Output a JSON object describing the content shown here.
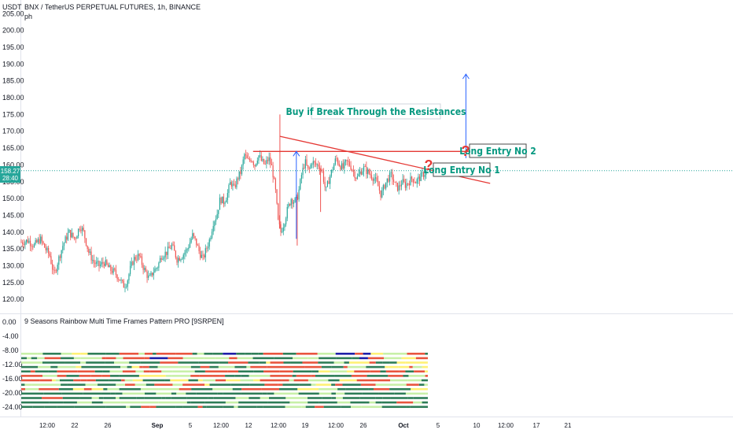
{
  "header": {
    "title": "BNX / TetherUS PERPETUAL FUTURES, 1h, BINANCE",
    "subtitle": "ph",
    "currency": "USDT"
  },
  "price_badge": {
    "price": "158.27",
    "countdown": "28:40"
  },
  "indicator": {
    "title": "9 Seasons Rainbow Multi Time Frames Pattern PRO [9SRPEN]"
  },
  "annotations": {
    "buy_text": "Buy if Break Through the Resistances",
    "entry1": "Long Entry No 1",
    "entry2": "Long Entry No 2",
    "question_mark": "?"
  },
  "colors": {
    "up_candle": "#26a69a",
    "down_candle": "#ef5350",
    "resistance_line": "#e53935",
    "arrow": "#2962ff",
    "annotation_text": "#089981",
    "question_mark": "#e53935",
    "price_line": "#26a69a",
    "rainbow_dark_green": "#2e7d57",
    "rainbow_light_green": "#c8f0a8",
    "rainbow_red": "#e8553e",
    "rainbow_yellow": "#fff176",
    "rainbow_blue": "#1e1ea8"
  },
  "chart_data": {
    "type": "candlestick",
    "title": "BNX / TetherUS PERPETUAL FUTURES, 1h, BINANCE",
    "price_axis": {
      "ticks": [
        "205.00",
        "200.00",
        "195.00",
        "190.00",
        "185.00",
        "180.00",
        "175.00",
        "170.00",
        "165.00",
        "160.00",
        "155.00",
        "150.00",
        "145.00",
        "140.00",
        "135.00",
        "130.00",
        "125.00",
        "120.00"
      ],
      "ylim": [
        117,
        206
      ],
      "current_price": 158.27
    },
    "indicator_axis": {
      "ticks": [
        "0.00",
        "-4.00",
        "-8.00",
        "-12.00",
        "-16.00",
        "-20.00",
        "-24.00"
      ],
      "ylim": [
        -26.5,
        1.5
      ]
    },
    "time_axis": {
      "ticks": [
        "12:00",
        "22",
        "26",
        "Sep",
        "5",
        "12:00",
        "12",
        "12:00",
        "19",
        "12:00",
        "26",
        "Oct",
        "5",
        "10",
        "12:00",
        "17",
        "21"
      ],
      "bold_ticks": [
        "Sep",
        "Oct"
      ]
    },
    "price_path": [
      [
        0,
        137
      ],
      [
        8,
        137.5
      ],
      [
        15,
        136
      ],
      [
        22,
        138
      ],
      [
        28,
        135
      ],
      [
        33,
        133
      ],
      [
        38,
        127
      ],
      [
        42,
        131
      ],
      [
        48,
        136
      ],
      [
        55,
        140
      ],
      [
        62,
        138
      ],
      [
        68,
        142
      ],
      [
        72,
        140
      ],
      [
        78,
        134
      ],
      [
        84,
        131
      ],
      [
        90,
        130
      ],
      [
        96,
        131
      ],
      [
        102,
        129
      ],
      [
        108,
        128
      ],
      [
        114,
        126
      ],
      [
        118,
        124
      ],
      [
        122,
        125
      ],
      [
        126,
        129
      ],
      [
        130,
        132
      ],
      [
        136,
        133
      ],
      [
        142,
        129
      ],
      [
        148,
        126
      ],
      [
        152,
        128
      ],
      [
        158,
        130
      ],
      [
        162,
        133
      ],
      [
        168,
        134
      ],
      [
        174,
        136
      ],
      [
        180,
        132
      ],
      [
        186,
        133
      ],
      [
        192,
        135
      ],
      [
        198,
        139
      ],
      [
        202,
        137
      ],
      [
        206,
        134
      ],
      [
        210,
        132
      ],
      [
        214,
        135
      ],
      [
        218,
        138
      ],
      [
        222,
        143
      ],
      [
        226,
        145
      ],
      [
        230,
        150
      ],
      [
        234,
        149
      ],
      [
        238,
        151
      ],
      [
        242,
        155
      ],
      [
        246,
        153
      ],
      [
        250,
        156
      ],
      [
        254,
        158
      ],
      [
        258,
        163
      ],
      [
        262,
        161
      ],
      [
        266,
        162
      ],
      [
        270,
        160
      ],
      [
        274,
        163
      ],
      [
        278,
        161
      ],
      [
        282,
        160
      ],
      [
        286,
        162
      ],
      [
        290,
        159
      ],
      [
        294,
        152
      ],
      [
        297,
        143
      ],
      [
        300,
        140
      ],
      [
        304,
        143
      ],
      [
        308,
        147
      ],
      [
        312,
        150
      ],
      [
        316,
        149
      ],
      [
        320,
        151
      ],
      [
        324,
        157
      ],
      [
        328,
        161
      ],
      [
        332,
        158
      ],
      [
        336,
        161
      ],
      [
        340,
        160
      ],
      [
        344,
        160
      ],
      [
        348,
        158
      ],
      [
        352,
        152
      ],
      [
        356,
        156
      ],
      [
        360,
        159
      ],
      [
        364,
        162
      ],
      [
        368,
        160
      ],
      [
        372,
        159
      ],
      [
        376,
        161
      ],
      [
        380,
        160
      ],
      [
        384,
        158
      ],
      [
        388,
        156
      ],
      [
        392,
        158
      ],
      [
        396,
        159
      ],
      [
        400,
        158
      ],
      [
        404,
        157
      ],
      [
        408,
        156
      ],
      [
        412,
        154
      ],
      [
        416,
        151
      ],
      [
        420,
        154
      ],
      [
        424,
        156
      ],
      [
        428,
        157
      ],
      [
        432,
        154
      ],
      [
        436,
        153
      ],
      [
        440,
        155
      ],
      [
        444,
        154
      ],
      [
        448,
        155
      ],
      [
        452,
        156
      ],
      [
        456,
        155
      ],
      [
        460,
        156
      ],
      [
        464,
        157
      ],
      [
        468,
        158
      ]
    ],
    "spikes": [
      {
        "x": 299,
        "high": 175
      },
      {
        "x": 319,
        "low": 136
      },
      {
        "x": 346,
        "low": 146
      }
    ],
    "resistance_lines": [
      {
        "name": "horizontal",
        "from": [
          268,
          164
        ],
        "to": [
          542,
          164
        ]
      },
      {
        "name": "descending",
        "from": [
          299,
          168.5
        ],
        "to": [
          542,
          154.5
        ]
      }
    ],
    "arrows": [
      {
        "x": 318,
        "from": 138,
        "to": 164
      },
      {
        "x": 514,
        "from": 162,
        "to": 187
      }
    ],
    "rainbow": {
      "rows": 13,
      "min": -24,
      "max": -9,
      "end_x": 470
    }
  }
}
